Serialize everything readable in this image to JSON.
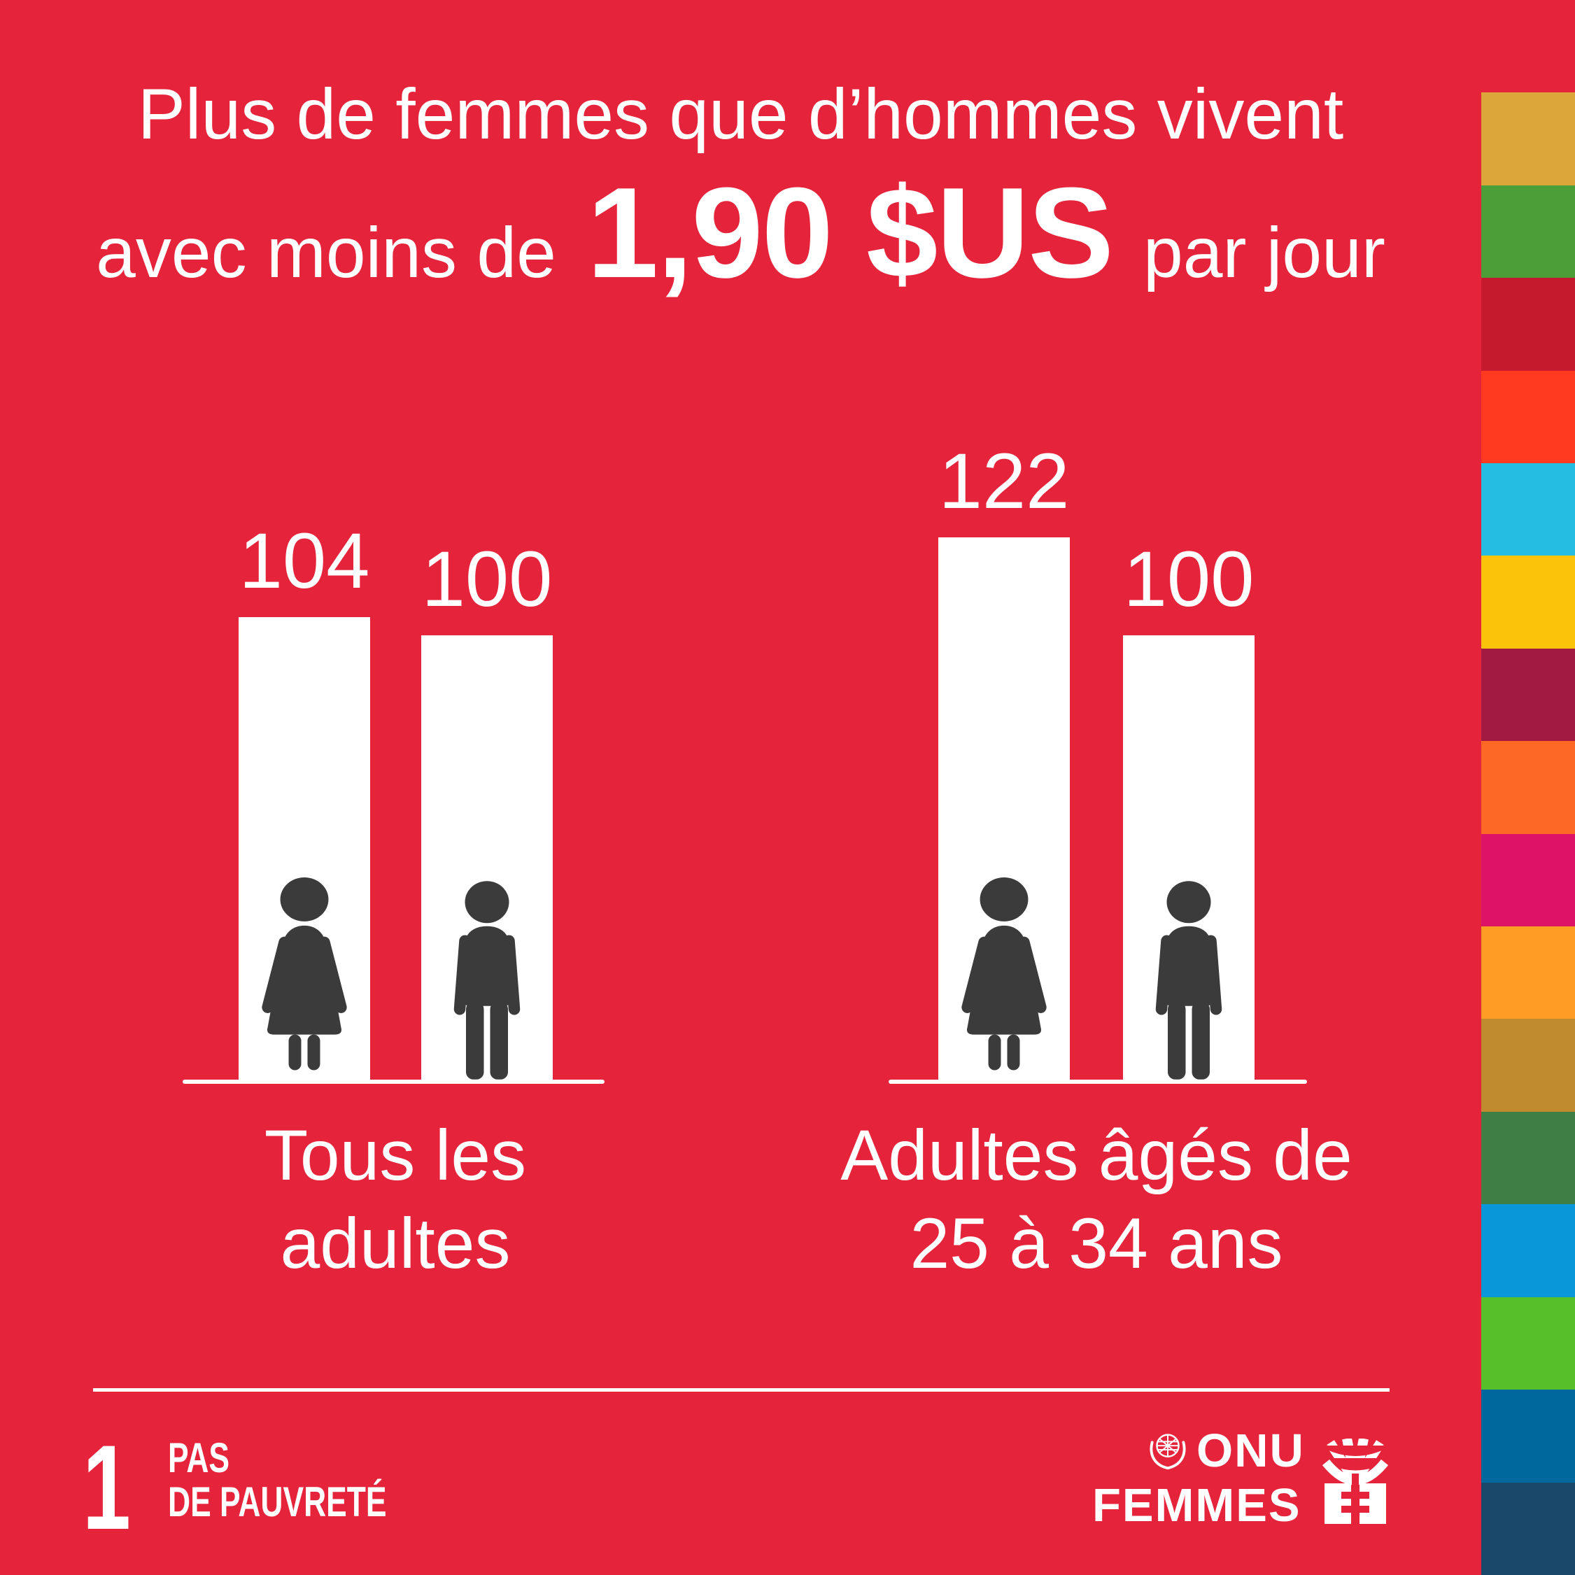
{
  "title": {
    "line1": "Plus de femmes que d’hommes vivent",
    "line2_prefix": "avec moins de",
    "line2_highlight": "1,90 $US",
    "line2_suffix": "par jour"
  },
  "chart_data": {
    "type": "bar",
    "categories": [
      "Tous les adultes",
      "Adultes âgés de 25 à 34 ans"
    ],
    "category_lines": [
      [
        "Tous les",
        "adultes"
      ],
      [
        "Adultes âgés de",
        "25 à 34 ans"
      ]
    ],
    "series": [
      {
        "name": "femmes",
        "values": [
          104,
          122
        ]
      },
      {
        "name": "hommes",
        "values": [
          100,
          100
        ]
      }
    ],
    "value_labels": [
      104,
      100,
      122,
      100
    ],
    "ylim": [
      0,
      130
    ],
    "grid": false,
    "legend": "none (pictogrammes femme/homme dans les barres)"
  },
  "footer": {
    "sdg_badge": {
      "number": "1",
      "label_line1": "PAS",
      "label_line2": "DE PAUVRETÉ"
    },
    "unwomen_logo": {
      "line1": "ONU",
      "line2": "FEMMES"
    }
  },
  "icons": [
    {
      "name": "woman-pictogram"
    },
    {
      "name": "man-pictogram"
    },
    {
      "name": "un-emblem"
    },
    {
      "name": "unwomen-mark"
    }
  ],
  "colors": {
    "background": "#E5243B",
    "text": "#FFFFFF",
    "bar": "#FFFFFF",
    "pictogram": "#3B3B3B",
    "divider": "#FFFFFF",
    "sdg_strip": [
      "#E5243B",
      "#DDA63A",
      "#4C9F38",
      "#C5192D",
      "#FF3A21",
      "#26BDE2",
      "#FCC30B",
      "#A21942",
      "#FD6925",
      "#DD1367",
      "#FD9D24",
      "#BF8B2E",
      "#3F7E44",
      "#0A97D9",
      "#56C02B",
      "#00689D",
      "#19486A"
    ]
  }
}
